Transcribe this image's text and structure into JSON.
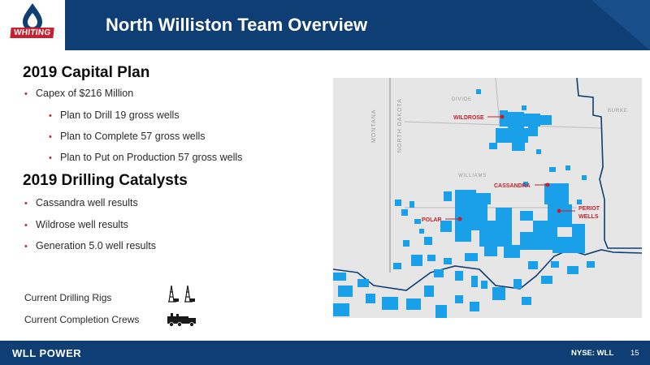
{
  "header": {
    "logo_text": "WHITING",
    "title": "North Williston Team Overview"
  },
  "capital_plan": {
    "heading": "2019 Capital Plan",
    "bullets": [
      "Capex of $216 Million",
      "Plan to Drill 19 gross wells",
      "Plan to Complete 57 gross wells",
      "Plan to Put on Production 57 gross wells"
    ]
  },
  "catalysts": {
    "heading": "2019 Drilling Catalysts",
    "bullets": [
      "Cassandra well results",
      "Wildrose well results",
      "Generation 5.0 well results"
    ]
  },
  "equipment": {
    "rigs_label": "Current Drilling Rigs",
    "crews_label": "Current Completion Crews",
    "rig_count": 2,
    "crew_count": 1
  },
  "map": {
    "state_labels": [
      "MONTANA",
      "NORTH DAKOTA"
    ],
    "county_labels": [
      "DIVIDE",
      "BURKE",
      "WILLIAMS"
    ],
    "well_labels": [
      "WILDROSE",
      "CASSANDRA",
      "POLAR",
      "PERIOT",
      "WELLS"
    ],
    "acreage_color": "#1aa0e8",
    "marker_color": "#c8202f"
  },
  "footer": {
    "brand": "WLL POWER",
    "ticker": "NYSE: WLL",
    "page": "15"
  },
  "colors": {
    "navy": "#0e3e73",
    "accent_red": "#c8202f"
  }
}
